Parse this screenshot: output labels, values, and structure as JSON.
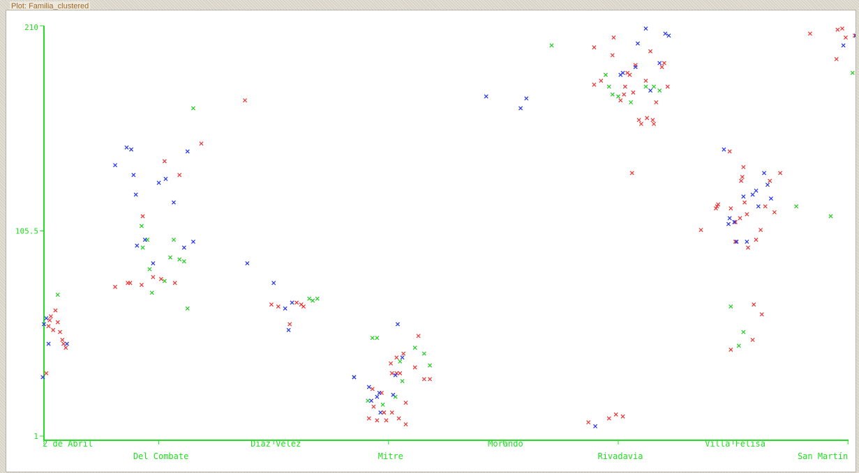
{
  "window": {
    "title": "Plot: Familia_clustered"
  },
  "chart_data": {
    "type": "scatter",
    "title": "",
    "xlabel": "",
    "ylabel": "",
    "ylim": [
      1,
      210
    ],
    "y_ticks": [
      {
        "value": 210,
        "label": "210"
      },
      {
        "value": 105.5,
        "label": "105.5"
      },
      {
        "value": 1,
        "label": "1"
      }
    ],
    "categories": [
      "2 de Abril",
      "Del Combate",
      "Díaz Velez",
      "Mitre",
      "Morando",
      "Rivadavia",
      "Villa Felisa",
      "San Martín"
    ],
    "colors": {
      "axis": "#22dd22",
      "red": "#ee3333",
      "green": "#22cc22",
      "blue": "#2233ee"
    },
    "series": [
      {
        "color": "red",
        "points": [
          [
            0,
            0.02,
            33
          ],
          [
            0,
            0.04,
            57
          ],
          [
            0,
            0.05,
            60
          ],
          [
            0,
            0.06,
            62
          ],
          [
            0,
            0.08,
            55
          ],
          [
            0,
            0.12,
            59
          ],
          [
            0,
            0.14,
            54
          ],
          [
            0,
            0.16,
            50
          ],
          [
            0,
            0.17,
            48
          ],
          [
            0,
            0.19,
            46
          ],
          [
            0,
            0.1,
            65
          ],
          [
            1,
            -0.38,
            77
          ],
          [
            1,
            -0.27,
            79
          ],
          [
            1,
            -0.25,
            79
          ],
          [
            1,
            -0.15,
            78
          ],
          [
            1,
            -0.14,
            113
          ],
          [
            1,
            -0.05,
            82
          ],
          [
            1,
            0.02,
            81
          ],
          [
            1,
            0.05,
            141
          ],
          [
            1,
            0.14,
            79
          ],
          [
            1,
            0.18,
            134
          ],
          [
            1,
            0.37,
            150
          ],
          [
            2,
            -0.25,
            172
          ],
          [
            2,
            -0.02,
            68
          ],
          [
            2,
            0.04,
            67
          ],
          [
            2,
            0.14,
            58
          ],
          [
            2,
            0.2,
            69
          ],
          [
            2,
            0.24,
            68
          ],
          [
            2,
            0.26,
            67
          ],
          [
            3,
            -0.3,
            31
          ],
          [
            3,
            -0.17,
            10
          ],
          [
            3,
            -0.14,
            25
          ],
          [
            3,
            -0.13,
            16
          ],
          [
            3,
            -0.1,
            9
          ],
          [
            3,
            -0.06,
            23
          ],
          [
            3,
            -0.04,
            13
          ],
          [
            3,
            -0.04,
            13
          ],
          [
            3,
            -0.02,
            9
          ],
          [
            3,
            0.02,
            38
          ],
          [
            3,
            0.03,
            33
          ],
          [
            3,
            0.03,
            13
          ],
          [
            3,
            0.07,
            41
          ],
          [
            3,
            0.07,
            33
          ],
          [
            3,
            0.09,
            10
          ],
          [
            3,
            0.1,
            33
          ],
          [
            3,
            0.13,
            43
          ],
          [
            3,
            0.15,
            7
          ],
          [
            3,
            0.15,
            18
          ],
          [
            3,
            0.23,
            36
          ],
          [
            3,
            0.26,
            52
          ],
          [
            3,
            0.31,
            30
          ],
          [
            3,
            0.36,
            30
          ],
          [
            5,
            -0.26,
            8
          ],
          [
            5,
            -0.21,
            199
          ],
          [
            5,
            -0.21,
            180
          ],
          [
            5,
            -0.15,
            182
          ],
          [
            5,
            -0.08,
            10
          ],
          [
            5,
            -0.05,
            195
          ],
          [
            5,
            -0.04,
            204
          ],
          [
            5,
            -0.02,
            12
          ],
          [
            5,
            0.02,
            172
          ],
          [
            5,
            0.04,
            11
          ],
          [
            5,
            0.05,
            175
          ],
          [
            5,
            0.06,
            179
          ],
          [
            5,
            0.08,
            186
          ],
          [
            5,
            0.1,
            185
          ],
          [
            5,
            0.12,
            135
          ],
          [
            5,
            0.13,
            176
          ],
          [
            5,
            0.15,
            190
          ],
          [
            5,
            0.18,
            162
          ],
          [
            5,
            0.2,
            160
          ],
          [
            5,
            0.24,
            182
          ],
          [
            5,
            0.25,
            163
          ],
          [
            5,
            0.28,
            197
          ],
          [
            5,
            0.3,
            162
          ],
          [
            5,
            0.31,
            160
          ],
          [
            5,
            0.33,
            171
          ],
          [
            5,
            0.38,
            189
          ],
          [
            5,
            0.4,
            191
          ],
          [
            5,
            0.43,
            179
          ],
          [
            6,
            -0.28,
            106
          ],
          [
            6,
            -0.15,
            117
          ],
          [
            6,
            -0.14,
            118
          ],
          [
            6,
            -0.13,
            119
          ],
          [
            6,
            -0.03,
            146
          ],
          [
            6,
            -0.02,
            45
          ],
          [
            6,
            -0.02,
            117
          ],
          [
            6,
            0.02,
            100
          ],
          [
            6,
            0.02,
            110
          ],
          [
            6,
            0.06,
            112
          ],
          [
            6,
            0.07,
            131
          ],
          [
            6,
            0.08,
            133
          ],
          [
            6,
            0.09,
            138
          ],
          [
            6,
            0.1,
            120
          ],
          [
            6,
            0.12,
            114
          ],
          [
            6,
            0.13,
            97
          ],
          [
            6,
            0.17,
            50
          ],
          [
            6,
            0.18,
            68
          ],
          [
            6,
            0.2,
            101
          ],
          [
            6,
            0.24,
            106
          ],
          [
            6,
            0.25,
            63
          ],
          [
            6,
            0.28,
            118
          ],
          [
            6,
            0.32,
            131
          ],
          [
            6,
            0.36,
            115
          ],
          [
            6,
            0.41,
            135
          ],
          [
            7,
            -0.33,
            206
          ],
          [
            7,
            -0.1,
            193
          ],
          [
            7,
            -0.09,
            208
          ],
          [
            7,
            -0.05,
            209
          ],
          [
            7,
            -0.02,
            204
          ],
          [
            7,
            0.06,
            205
          ],
          [
            7,
            0.09,
            197
          ],
          [
            7,
            0.11,
            202
          ],
          [
            7,
            0.12,
            207
          ],
          [
            7,
            0.13,
            206
          ],
          [
            7,
            0.14,
            199
          ]
        ]
      },
      {
        "color": "green",
        "points": [
          [
            0,
            0.12,
            73
          ],
          [
            1,
            -0.15,
            108
          ],
          [
            1,
            -0.14,
            97
          ],
          [
            1,
            -0.1,
            101
          ],
          [
            1,
            -0.08,
            86
          ],
          [
            1,
            -0.06,
            74
          ],
          [
            1,
            0.05,
            80
          ],
          [
            1,
            0.1,
            92
          ],
          [
            1,
            0.13,
            101
          ],
          [
            1,
            0.18,
            91
          ],
          [
            1,
            0.22,
            90
          ],
          [
            1,
            0.25,
            66
          ],
          [
            1,
            0.3,
            168
          ],
          [
            2,
            0.31,
            71
          ],
          [
            2,
            0.34,
            70
          ],
          [
            2,
            0.38,
            71
          ],
          [
            3,
            -0.3,
            31
          ],
          [
            3,
            -0.18,
            19
          ],
          [
            3,
            -0.14,
            51
          ],
          [
            3,
            -0.1,
            51
          ],
          [
            3,
            -0.05,
            17
          ],
          [
            3,
            0.06,
            21
          ],
          [
            3,
            0.1,
            39
          ],
          [
            3,
            0.12,
            29
          ],
          [
            3,
            0.23,
            46
          ],
          [
            3,
            0.31,
            43
          ],
          [
            3,
            0.36,
            37
          ],
          [
            4,
            0.42,
            200
          ],
          [
            5,
            -0.11,
            185
          ],
          [
            5,
            -0.08,
            179
          ],
          [
            5,
            -0.05,
            175
          ],
          [
            5,
            0.0,
            174
          ],
          [
            5,
            0.11,
            171
          ],
          [
            5,
            0.24,
            179
          ],
          [
            5,
            0.31,
            179
          ],
          [
            5,
            0.36,
            177
          ],
          [
            6,
            -0.02,
            67
          ],
          [
            6,
            0.05,
            47
          ],
          [
            6,
            0.09,
            54
          ],
          [
            6,
            0.55,
            118
          ],
          [
            7,
            -0.15,
            113
          ],
          [
            7,
            0.04,
            186
          ],
          [
            7,
            0.08,
            206
          ],
          [
            7,
            0.11,
            205
          ],
          [
            7,
            0.15,
            208
          ],
          [
            7,
            0.17,
            207
          ],
          [
            7,
            0.22,
            213
          ]
        ]
      },
      {
        "color": "blue",
        "points": [
          [
            0,
            -0.01,
            31
          ],
          [
            0,
            0.0,
            58
          ],
          [
            0,
            0.02,
            61
          ],
          [
            0,
            0.04,
            48
          ],
          [
            0,
            0.2,
            48
          ],
          [
            1,
            -0.38,
            139
          ],
          [
            1,
            -0.28,
            148
          ],
          [
            1,
            -0.24,
            147
          ],
          [
            1,
            -0.22,
            134
          ],
          [
            1,
            -0.2,
            124
          ],
          [
            1,
            -0.19,
            98
          ],
          [
            1,
            -0.12,
            101
          ],
          [
            1,
            -0.05,
            89
          ],
          [
            1,
            0.0,
            130
          ],
          [
            1,
            0.06,
            132
          ],
          [
            1,
            0.13,
            120
          ],
          [
            1,
            0.22,
            97
          ],
          [
            1,
            0.25,
            146
          ],
          [
            1,
            0.3,
            100
          ],
          [
            2,
            -0.23,
            89
          ],
          [
            2,
            0.0,
            79
          ],
          [
            2,
            0.1,
            66
          ],
          [
            2,
            0.13,
            55
          ],
          [
            2,
            0.16,
            69
          ],
          [
            3,
            -0.3,
            31
          ],
          [
            3,
            -0.17,
            26
          ],
          [
            3,
            -0.15,
            19
          ],
          [
            3,
            -0.1,
            21
          ],
          [
            3,
            -0.08,
            23
          ],
          [
            3,
            -0.07,
            13
          ],
          [
            3,
            0.04,
            22
          ],
          [
            3,
            0.06,
            32
          ],
          [
            3,
            0.08,
            58
          ],
          [
            3,
            0.12,
            41
          ],
          [
            4,
            -0.15,
            174
          ],
          [
            4,
            0.15,
            168
          ],
          [
            4,
            0.2,
            173
          ],
          [
            5,
            -0.2,
            6
          ],
          [
            5,
            0.02,
            185
          ],
          [
            5,
            0.04,
            186
          ],
          [
            5,
            0.15,
            189
          ],
          [
            5,
            0.17,
            201
          ],
          [
            5,
            0.24,
            218
          ],
          [
            5,
            0.28,
            177
          ],
          [
            5,
            0.36,
            191
          ],
          [
            5,
            0.41,
            206
          ],
          [
            5,
            0.44,
            205
          ],
          [
            6,
            -0.08,
            147
          ],
          [
            6,
            -0.04,
            109
          ],
          [
            6,
            -0.03,
            112
          ],
          [
            6,
            0.01,
            110
          ],
          [
            6,
            0.03,
            100
          ],
          [
            6,
            0.09,
            123
          ],
          [
            6,
            0.12,
            100
          ],
          [
            6,
            0.17,
            124
          ],
          [
            6,
            0.2,
            126
          ],
          [
            6,
            0.22,
            118
          ],
          [
            6,
            0.27,
            135
          ],
          [
            6,
            0.3,
            129
          ],
          [
            6,
            0.33,
            122
          ],
          [
            7,
            -0.04,
            200
          ],
          [
            7,
            0.07,
            205
          ],
          [
            7,
            0.12,
            208
          ],
          [
            7,
            0.13,
            202
          ],
          [
            7,
            0.17,
            204
          ],
          [
            7,
            0.21,
            207
          ],
          [
            7,
            0.24,
            210
          ],
          [
            7,
            0.3,
            215
          ],
          [
            7,
            0.31,
            207
          ],
          [
            7,
            0.38,
            212
          ]
        ]
      }
    ],
    "grid": false,
    "legend": "none"
  }
}
